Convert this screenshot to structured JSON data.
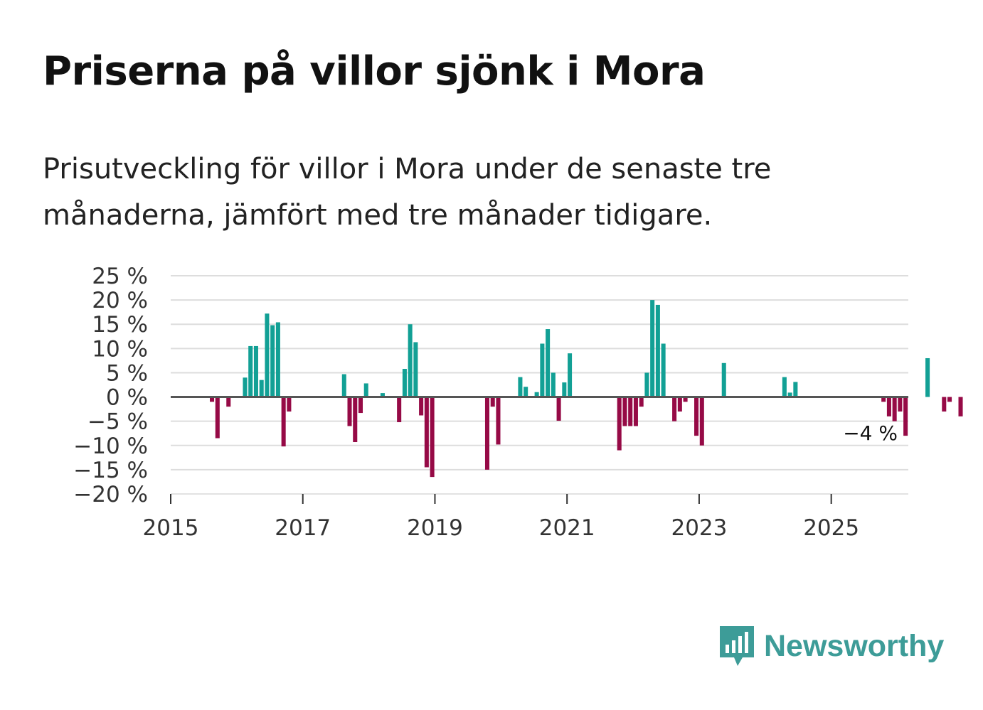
{
  "title": "Priserna på villor sjönk i Mora",
  "subtitle": "Prisutveckling för villor i Mora under de senaste tre månaderna, jämfört med tre månader tidigare.",
  "brand": {
    "name": "Newsworthy",
    "logo_icon": "bar-chart-speech-bubble-icon"
  },
  "colors": {
    "positive": "#12a095",
    "negative": "#960a46",
    "grid": "#dddddd",
    "zero_line": "#555555",
    "brand": "#3d9c98"
  },
  "chart_data": {
    "type": "bar",
    "title": "Priserna på villor sjönk i Mora",
    "xlabel": "",
    "ylabel": "",
    "x_ticks": [
      "2015",
      "2017",
      "2019",
      "2021",
      "2023",
      "2025"
    ],
    "y_ticks": [
      "25 %",
      "20 %",
      "15 %",
      "10 %",
      "5 %",
      "0 %",
      "−5 %",
      "−10 %",
      "−15 %",
      "−20 %"
    ],
    "y_tick_values": [
      25,
      20,
      15,
      10,
      5,
      0,
      -5,
      -10,
      -15,
      -20
    ],
    "ylim": [
      -20,
      25
    ],
    "xlim": [
      "2015-01",
      "2026-03"
    ],
    "grid": true,
    "start_month": "2015-01",
    "unit": "%",
    "values": [
      0,
      0,
      0,
      0,
      0,
      0,
      0,
      -1,
      -8.5,
      0,
      -2,
      0,
      0,
      4,
      10.5,
      10.5,
      3.5,
      17.2,
      14.8,
      15.4,
      -10.2,
      -3,
      0,
      0,
      0,
      0,
      0,
      0,
      0,
      0,
      0,
      4.7,
      -6,
      -9.3,
      -3.3,
      2.8,
      0,
      0,
      0.8,
      0,
      0,
      -5.2,
      5.8,
      15,
      11.3,
      -3.8,
      -14.5,
      -16.5,
      0,
      0,
      0,
      0,
      0,
      0,
      0,
      0,
      0,
      -15,
      -2,
      -9.8,
      0,
      0,
      0,
      4.1,
      2.1,
      0,
      1,
      11,
      14,
      5,
      -4.9,
      3,
      9,
      0,
      0,
      0,
      0,
      0,
      0,
      0,
      0,
      -11,
      -6,
      -6,
      -6,
      -2,
      5,
      20,
      19,
      11,
      0,
      -5,
      -3,
      -1,
      0,
      -8,
      -10,
      0,
      0,
      0,
      7,
      0,
      0,
      0,
      0,
      0,
      0,
      0,
      0,
      0,
      0,
      4.1,
      0.9,
      3.1,
      0,
      0,
      0,
      0,
      0,
      0,
      0,
      0,
      0,
      0,
      0,
      0,
      0,
      0,
      0,
      -1,
      -4,
      -5,
      -3,
      -8,
      0,
      0,
      0,
      8,
      0,
      0,
      -3,
      -1,
      0,
      -4
    ],
    "last_value_label": "−4 %"
  }
}
